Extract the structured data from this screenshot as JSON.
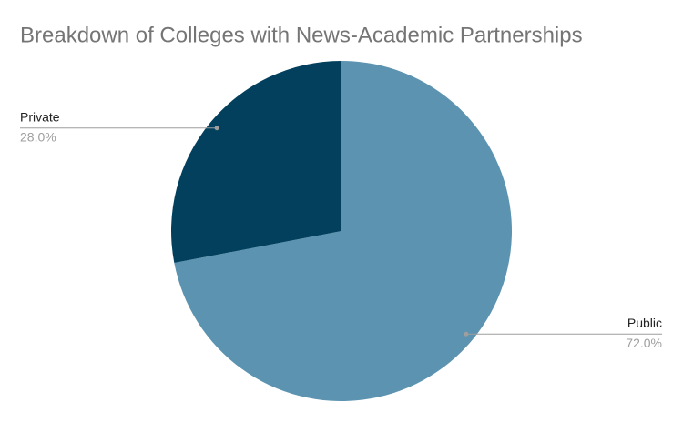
{
  "chart_data": {
    "type": "pie",
    "title": "Breakdown of Colleges with News-Academic Partnerships",
    "categories": [
      "Public",
      "Private"
    ],
    "values": [
      72,
      28
    ],
    "value_labels": [
      "72.0%",
      "28.0%"
    ],
    "colors": [
      "#5b93b0",
      "#02405e"
    ]
  }
}
